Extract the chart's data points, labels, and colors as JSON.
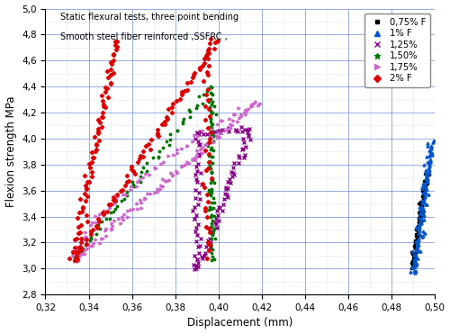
{
  "title_line1": "Static flexural tests, three point bending",
  "title_line2": "Smooth steel fiber reinforced ,SSFRC ,",
  "xlabel": "Displacement (mm)",
  "ylabel": "Flexion strength MPa",
  "xlim": [
    0.32,
    0.5
  ],
  "ylim": [
    2.8,
    5.0
  ],
  "xticks": [
    0.32,
    0.34,
    0.36,
    0.38,
    0.4,
    0.42,
    0.44,
    0.46,
    0.48,
    0.5
  ],
  "yticks": [
    2.8,
    3.0,
    3.2,
    3.4,
    3.6,
    3.8,
    4.0,
    4.2,
    4.4,
    4.6,
    4.8,
    5.0
  ],
  "series": [
    {
      "label": "0,75% F",
      "color": "#000000",
      "marker": "s"
    },
    {
      "label": "1% F",
      "color": "#0055cc",
      "marker": "^"
    },
    {
      "label": "1,25%",
      "color": "#880088",
      "marker": "x"
    },
    {
      "label": "1,50%",
      "color": "#007700",
      "marker": "*"
    },
    {
      "label": "1,75%",
      "color": "#cc66cc",
      "marker": ">"
    },
    {
      "label": "2% F",
      "color": "#dd0000",
      "marker": "D"
    }
  ],
  "background_color": "#ffffff",
  "grid_color_major": "#5577cc",
  "grid_color_minor": "#aabbee"
}
